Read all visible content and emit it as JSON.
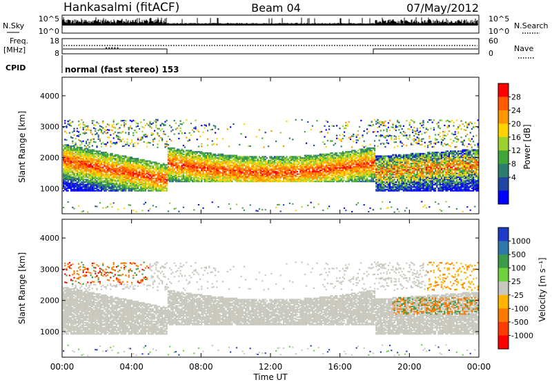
{
  "header": {
    "station": "Hankasalmi (fitACF)",
    "beam": "Beam 04",
    "date": "07/May/2012"
  },
  "panels": {
    "nsky_label": "N.Sky",
    "nsky_ticks": [
      "10^5",
      "10^0"
    ],
    "nsearch_label": "N.Search",
    "nsearch_ticks": [
      "10^5",
      "10^0"
    ],
    "freq_label": "Freq.",
    "freq_unit": "[MHz]",
    "freq_ticks": [
      "18",
      "8"
    ],
    "nave_label": "Nave",
    "nave_ticks": [
      "60",
      "0"
    ],
    "cpid_label": "CPID",
    "cpid_value": "normal (fast stereo) 153"
  },
  "chart_data": [
    {
      "type": "heatmap",
      "name": "power",
      "xlabel": "",
      "ylabel": "Slant Range [km]",
      "yticks": [
        "4000",
        "3000",
        "2000",
        "1000"
      ],
      "ylim": [
        180,
        4600
      ],
      "colorbar_label": "Power [dB]",
      "colorbar_ticks": [
        "28",
        "24",
        "20",
        "16",
        "12",
        "8",
        "4"
      ],
      "colorbar_colors": [
        "#ff0000",
        "#ff5a00",
        "#ff9600",
        "#ffd200",
        "#9bd22d",
        "#41a537",
        "#2d7d6e",
        "#1e46a0",
        "#0000ff"
      ]
    },
    {
      "type": "heatmap",
      "name": "velocity",
      "xlabel": "Time UT",
      "ylabel": "Slant Range [km]",
      "yticks": [
        "4000",
        "3000",
        "2000",
        "1000"
      ],
      "ylim": [
        180,
        4600
      ],
      "colorbar_label": "Velocity [m s⁻¹]",
      "colorbar_ticks": [
        "1000",
        "500",
        "100",
        "25",
        "-25",
        "-100",
        "-500",
        "-1000"
      ],
      "colorbar_colors": [
        "#1e3cc8",
        "#2d78aa",
        "#3c9b46",
        "#6ed23c",
        "#c8c8be",
        "#ffb400",
        "#ff7800",
        "#ff3c00",
        "#ff0000"
      ]
    }
  ],
  "time_axis": {
    "ticks": [
      "00:00",
      "04:00",
      "08:00",
      "12:00",
      "16:00",
      "20:00",
      "00:00"
    ]
  }
}
